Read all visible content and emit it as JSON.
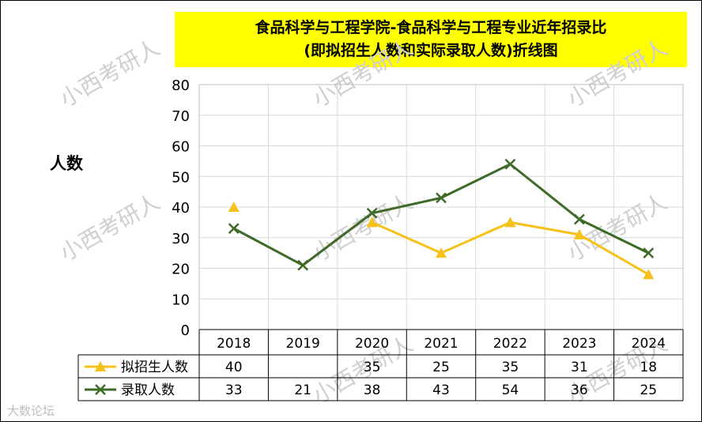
{
  "chart_data": {
    "type": "line",
    "title": [
      "食品科学与工程学院-食品科学与工程专业近年招录比",
      "(即拟招生人数和实际录取人数)折线图"
    ],
    "ylabel": "人数",
    "ylim": [
      0,
      80
    ],
    "yticks": [
      "0",
      "10",
      "20",
      "30",
      "40",
      "50",
      "60",
      "70",
      "80"
    ],
    "categories": [
      "2018",
      "2019",
      "2020",
      "2021",
      "2022",
      "2023",
      "2024"
    ],
    "grid": true,
    "legend": "data-table",
    "series": [
      {
        "name": "拟招生人数",
        "color": "#f5c11a",
        "marker": "triangle",
        "values": [
          40,
          null,
          35,
          25,
          35,
          31,
          18
        ],
        "labels": [
          "40",
          "",
          "35",
          "25",
          "35",
          "31",
          "18"
        ]
      },
      {
        "name": "录取人数",
        "color": "#3f6b28",
        "marker": "x",
        "values": [
          33,
          21,
          38,
          43,
          54,
          36,
          25
        ],
        "labels": [
          "33",
          "21",
          "38",
          "43",
          "54",
          "36",
          "25"
        ]
      }
    ]
  },
  "watermark": "小西考研人",
  "corner_watermark": "大数论坛"
}
